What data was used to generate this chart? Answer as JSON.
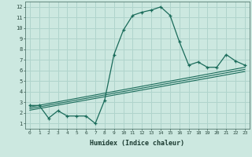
{
  "title": "",
  "xlabel": "Humidex (Indice chaleur)",
  "bg_color": "#cce8e0",
  "grid_color": "#b0d4cc",
  "line_color": "#1a6b5a",
  "xlim": [
    -0.5,
    23.5
  ],
  "ylim": [
    0.5,
    12.5
  ],
  "xticks": [
    0,
    1,
    2,
    3,
    4,
    5,
    6,
    7,
    8,
    9,
    10,
    11,
    12,
    13,
    14,
    15,
    16,
    17,
    18,
    19,
    20,
    21,
    22,
    23
  ],
  "yticks": [
    1,
    2,
    3,
    4,
    5,
    6,
    7,
    8,
    9,
    10,
    11,
    12
  ],
  "main_x": [
    0,
    1,
    2,
    3,
    4,
    5,
    6,
    7,
    8,
    9,
    10,
    11,
    12,
    13,
    14,
    15,
    16,
    17,
    18,
    19,
    20,
    21,
    22,
    23
  ],
  "main_y": [
    2.7,
    2.7,
    1.5,
    2.2,
    1.7,
    1.7,
    1.7,
    1.0,
    3.2,
    7.5,
    9.8,
    11.2,
    11.5,
    11.7,
    12.0,
    11.2,
    8.7,
    6.5,
    6.8,
    6.3,
    6.3,
    7.5,
    6.9,
    6.5
  ],
  "line2_x": [
    0,
    23
  ],
  "line2_y": [
    2.55,
    6.3
  ],
  "line3_x": [
    0,
    23
  ],
  "line3_y": [
    2.4,
    6.1
  ],
  "line4_x": [
    0,
    23
  ],
  "line4_y": [
    2.25,
    5.9
  ]
}
